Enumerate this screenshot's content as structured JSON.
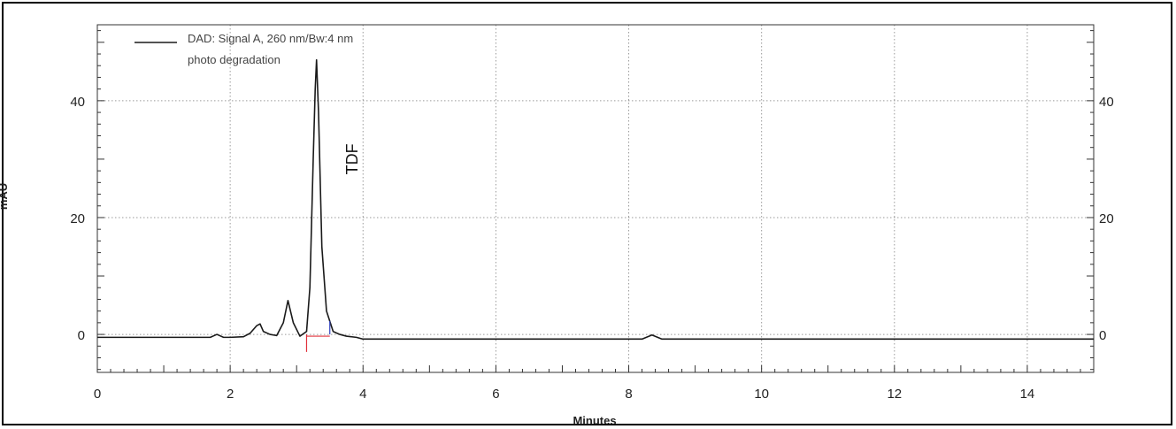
{
  "chart_data": {
    "type": "line",
    "xlabel": "Minutes",
    "ylabel": "mAU",
    "xlim": [
      0,
      15
    ],
    "ylim": [
      -6.5,
      53
    ],
    "x_ticks": [
      0,
      2,
      4,
      6,
      8,
      10,
      12,
      14
    ],
    "y_ticks": [
      0,
      20,
      40
    ],
    "grid": true,
    "legend_position": "top-left",
    "series": [
      {
        "name": "DAD: Signal A, 260 nm/Bw:4 nm",
        "x": [
          0,
          1.7,
          1.8,
          1.9,
          2.0,
          2.2,
          2.3,
          2.4,
          2.45,
          2.5,
          2.6,
          2.7,
          2.8,
          2.87,
          2.95,
          3.05,
          3.15,
          3.2,
          3.25,
          3.28,
          3.3,
          3.33,
          3.38,
          3.45,
          3.55,
          3.65,
          3.75,
          3.9,
          4.0,
          8.2,
          8.35,
          8.5,
          15
        ],
        "y": [
          -0.5,
          -0.5,
          0,
          -0.5,
          -0.5,
          -0.4,
          0.2,
          1.5,
          1.8,
          0.5,
          0.0,
          -0.2,
          2.0,
          5.8,
          2.0,
          -0.3,
          0.5,
          8.0,
          30.0,
          42.0,
          47.0,
          38.0,
          15.0,
          4.0,
          0.5,
          0.0,
          -0.3,
          -0.5,
          -0.8,
          -0.8,
          -0.1,
          -0.8,
          -0.8
        ]
      }
    ],
    "annotations": [
      {
        "text": "TDF",
        "x": 3.6,
        "y": 30
      }
    ],
    "legend_subtitle": "photo degradation"
  },
  "colors": {
    "signal": "#1a1a1a",
    "grid": "#9a9a9a",
    "baseline_marker_start": "#e0303a",
    "baseline_marker_end": "#3040c0"
  }
}
